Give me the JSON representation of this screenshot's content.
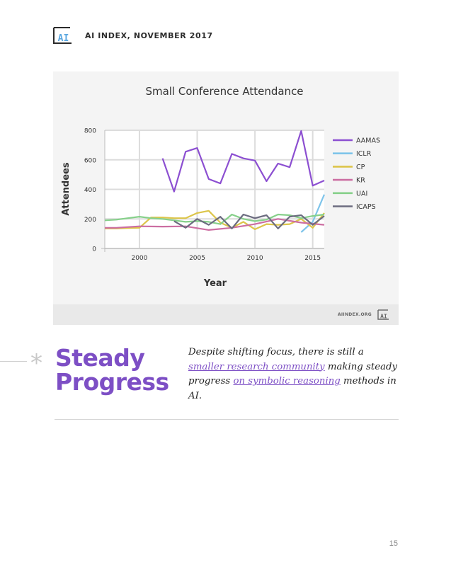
{
  "header": {
    "logo_text": "AI",
    "title": "AI INDEX, NOVEMBER 2017"
  },
  "chart_footer": {
    "url": "AIINDEX.ORG",
    "logo_text": "AI"
  },
  "chart_data": {
    "type": "line",
    "title": "Small Conference Attendance",
    "xlabel": "Year",
    "ylabel": "Attendees",
    "xlim": [
      1997,
      2016
    ],
    "ylim": [
      0,
      800
    ],
    "xticks": [
      2000,
      2005,
      2010,
      2015
    ],
    "yticks": [
      0,
      200,
      400,
      600,
      800
    ],
    "grid": true,
    "legend_position": "right",
    "series": [
      {
        "name": "AAMAS",
        "color": "#8c4fd1",
        "points": [
          [
            2002,
            610
          ],
          [
            2003,
            385
          ],
          [
            2004,
            655
          ],
          [
            2005,
            680
          ],
          [
            2006,
            470
          ],
          [
            2007,
            440
          ],
          [
            2008,
            640
          ],
          [
            2009,
            610
          ],
          [
            2010,
            595
          ],
          [
            2011,
            455
          ],
          [
            2012,
            575
          ],
          [
            2013,
            550
          ],
          [
            2014,
            795
          ],
          [
            2015,
            425
          ],
          [
            2016,
            460
          ]
        ]
      },
      {
        "name": "ICLR",
        "color": "#7ec4ea",
        "points": [
          [
            2014,
            110
          ],
          [
            2015,
            180
          ],
          [
            2016,
            365
          ]
        ]
      },
      {
        "name": "CP",
        "color": "#dcc54a",
        "points": [
          [
            1997,
            135
          ],
          [
            1998,
            135
          ],
          [
            1999,
            138
          ],
          [
            2000,
            140
          ],
          [
            2001,
            210
          ],
          [
            2002,
            210
          ],
          [
            2003,
            205
          ],
          [
            2004,
            205
          ],
          [
            2005,
            240
          ],
          [
            2006,
            255
          ],
          [
            2007,
            175
          ],
          [
            2008,
            140
          ],
          [
            2009,
            180
          ],
          [
            2010,
            130
          ],
          [
            2011,
            165
          ],
          [
            2012,
            160
          ],
          [
            2013,
            165
          ],
          [
            2014,
            200
          ],
          [
            2015,
            140
          ],
          [
            2016,
            240
          ]
        ]
      },
      {
        "name": "KR",
        "color": "#cc6ea2",
        "points": [
          [
            1997,
            140
          ],
          [
            1998,
            140
          ],
          [
            2000,
            150
          ],
          [
            2002,
            148
          ],
          [
            2004,
            150
          ],
          [
            2006,
            125
          ],
          [
            2008,
            140
          ],
          [
            2010,
            165
          ],
          [
            2012,
            200
          ],
          [
            2014,
            175
          ],
          [
            2016,
            160
          ]
        ]
      },
      {
        "name": "UAI",
        "color": "#86d08a",
        "points": [
          [
            1997,
            190
          ],
          [
            1998,
            195
          ],
          [
            1999,
            205
          ],
          [
            2000,
            215
          ],
          [
            2001,
            205
          ],
          [
            2002,
            200
          ],
          [
            2003,
            190
          ],
          [
            2004,
            180
          ],
          [
            2005,
            185
          ],
          [
            2006,
            180
          ],
          [
            2007,
            165
          ],
          [
            2008,
            230
          ],
          [
            2009,
            200
          ],
          [
            2010,
            185
          ],
          [
            2011,
            195
          ],
          [
            2012,
            230
          ],
          [
            2013,
            225
          ],
          [
            2014,
            205
          ],
          [
            2015,
            220
          ],
          [
            2016,
            230
          ]
        ]
      },
      {
        "name": "ICAPS",
        "color": "#6c6c80",
        "points": [
          [
            2003,
            185
          ],
          [
            2004,
            140
          ],
          [
            2005,
            200
          ],
          [
            2006,
            160
          ],
          [
            2007,
            215
          ],
          [
            2008,
            135
          ],
          [
            2009,
            230
          ],
          [
            2010,
            205
          ],
          [
            2011,
            225
          ],
          [
            2012,
            135
          ],
          [
            2013,
            215
          ],
          [
            2014,
            225
          ],
          [
            2015,
            160
          ],
          [
            2016,
            220
          ]
        ]
      }
    ]
  },
  "section": {
    "heading_line1": "Steady",
    "heading_line2": "Progress",
    "text_1": "Despite shifting focus, there is still a ",
    "link_1": "smaller research community",
    "text_2": " making steady progress ",
    "link_2": "on symbolic reasoning",
    "text_3": " methods in AI.",
    "asterisk": "*"
  },
  "page_number": "15"
}
